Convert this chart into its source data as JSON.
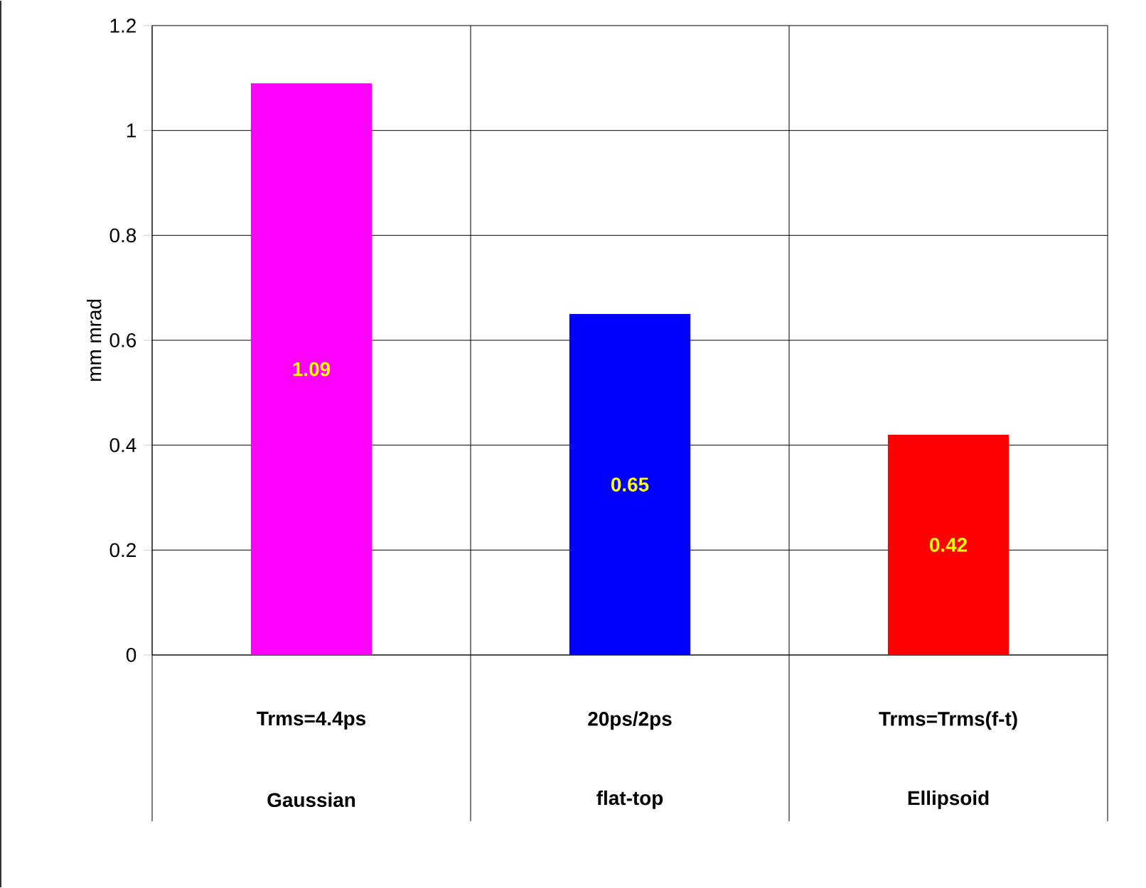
{
  "chart_data": {
    "type": "bar",
    "ylabel": "mm mrad",
    "categories": [
      "Gaussian",
      "flat-top",
      "Ellipsoid"
    ],
    "annotations": [
      "Trms=4.4ps",
      "20ps/2ps",
      "Trms=Trms(f-t)"
    ],
    "values": [
      1.09,
      0.65,
      0.42
    ],
    "colors": [
      "#ff00ff",
      "#0000ff",
      "#ff0000"
    ],
    "data_labels": true,
    "grid": "y",
    "ylim": [
      0,
      1.2
    ],
    "yticks": [
      0,
      0.2,
      0.4,
      0.6,
      0.8,
      1,
      1.2
    ]
  }
}
